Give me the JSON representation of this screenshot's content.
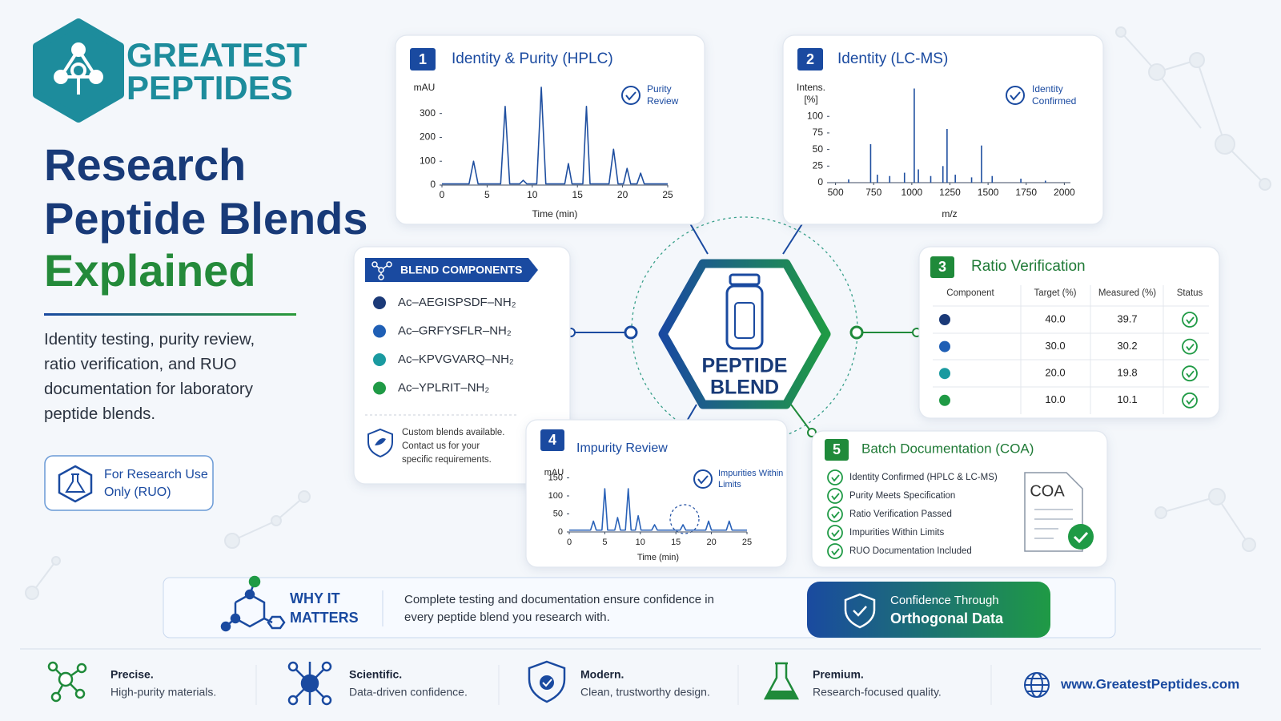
{
  "brand": {
    "lines": [
      "GREATEST",
      "PEPTIDES"
    ]
  },
  "headline": {
    "lines": [
      "Research",
      "Peptide Blends",
      "Explained"
    ]
  },
  "description": "Identity testing, purity review, ratio verification, and RUO documentation for laboratory peptide blends.",
  "ruo_badge": "For Research Use Only (RUO)",
  "components": {
    "title": "BLEND COMPONENTS",
    "items": [
      {
        "name": "Ac–AEGISPSDF–NH₂",
        "color": "#1b3a78"
      },
      {
        "name": "Ac–GRFYSFLR–NH₂",
        "color": "#1f5fb5"
      },
      {
        "name": "Ac–KPVGVARQ–NH₂",
        "color": "#1a9aa0"
      },
      {
        "name": "Ac–YPLRIT–NH₂",
        "color": "#1f9a45"
      }
    ],
    "note": "Custom blends available. Contact us for your specific requirements."
  },
  "center": {
    "lines": [
      "PEPTIDE",
      "BLEND"
    ]
  },
  "hplc": {
    "number": "1",
    "title": "Identity & Purity (HPLC)",
    "badge": "Purity Review",
    "chart": {
      "type": "line",
      "y_label": "mAU",
      "x_label": "Time (min)",
      "color": "#1f4fa0",
      "xlim": [
        0,
        25
      ],
      "ylim": [
        0,
        440
      ],
      "xticks": [
        0,
        5,
        10,
        15,
        20,
        25
      ],
      "yticks": [
        0,
        100,
        200,
        300
      ],
      "x": [
        0,
        3,
        3.5,
        4,
        6.5,
        7,
        7.5,
        8.6,
        9,
        9.4,
        10.5,
        11,
        11.5,
        13.6,
        14,
        14.4,
        15.6,
        16,
        16.4,
        18.5,
        19,
        19.5,
        20.1,
        20.5,
        20.9,
        21.6,
        22,
        22.4,
        25
      ],
      "y": [
        5,
        5,
        100,
        5,
        5,
        330,
        5,
        5,
        20,
        5,
        5,
        410,
        5,
        5,
        90,
        5,
        5,
        330,
        5,
        5,
        150,
        5,
        5,
        70,
        5,
        5,
        50,
        5,
        5
      ]
    }
  },
  "lcms": {
    "number": "2",
    "title": "Identity (LC-MS)",
    "badge": "Identity Confirmed",
    "chart": {
      "type": "stem",
      "y_label": "Intens. [%]",
      "x_label": "m/z",
      "color": "#1f4fa0",
      "xlim": [
        460,
        2040
      ],
      "ylim": [
        0,
        145
      ],
      "xticks": [
        500,
        750,
        1000,
        1250,
        1500,
        1750,
        2000
      ],
      "yticks": [
        0,
        25,
        50,
        75,
        100
      ],
      "x": [
        586,
        730,
        774,
        855,
        952,
        1016,
        1043,
        1124,
        1204,
        1231,
        1285,
        1392,
        1457,
        1527,
        1715,
        1876
      ],
      "values": [
        5,
        58,
        12,
        10,
        15,
        142,
        20,
        10,
        25,
        81,
        12,
        8,
        56,
        10,
        6,
        3
      ]
    }
  },
  "ratio": {
    "number": "3",
    "title": "Ratio Verification",
    "columns": [
      "Component",
      "Target (%)",
      "Measured (%)",
      "Status"
    ],
    "rows": [
      {
        "target": "40.0",
        "measured": "39.7"
      },
      {
        "target": "30.0",
        "measured": "30.2"
      },
      {
        "target": "20.0",
        "measured": "19.8"
      },
      {
        "target": "10.0",
        "measured": "10.1"
      }
    ]
  },
  "impurity": {
    "number": "4",
    "title": "Impurity Review",
    "badge": "Impurities Within Limits",
    "chart": {
      "type": "line",
      "y_label": "mAU",
      "x_label": "Time (min)",
      "color": "#2a62b8",
      "xlim": [
        0,
        25
      ],
      "ylim": [
        0,
        180
      ],
      "xticks": [
        0,
        5,
        10,
        15,
        20,
        25
      ],
      "yticks": [
        0,
        50,
        100,
        150
      ],
      "x": [
        0,
        3,
        3.4,
        3.8,
        4.6,
        5,
        5.4,
        6.4,
        6.8,
        7.2,
        7.9,
        8.3,
        8.7,
        9.3,
        9.7,
        10.1,
        11.6,
        12,
        12.4,
        15.6,
        16,
        16.4,
        19.2,
        19.6,
        20,
        22.1,
        22.5,
        22.9,
        25
      ],
      "y": [
        5,
        5,
        30,
        5,
        5,
        120,
        5,
        5,
        40,
        5,
        5,
        120,
        5,
        5,
        45,
        5,
        5,
        20,
        5,
        5,
        20,
        5,
        5,
        30,
        5,
        5,
        30,
        5,
        5
      ]
    }
  },
  "coa": {
    "number": "5",
    "title": "Batch Documentation (COA)",
    "items": [
      "Identity Confirmed (HPLC & LC-MS)",
      "Purity Meets Specification",
      "Ratio Verification Passed",
      "Impurities Within Limits",
      "RUO Documentation Included"
    ],
    "doc_label": "COA"
  },
  "why": {
    "heading": "WHY IT MATTERS",
    "text": "Complete testing and documentation ensure confidence in every peptide blend you research with.",
    "cta": [
      "Confidence Through",
      "Orthogonal Data"
    ]
  },
  "features": [
    {
      "title": "Precise.",
      "text": "High-purity materials."
    },
    {
      "title": "Scientific.",
      "text": "Data-driven confidence."
    },
    {
      "title": "Modern.",
      "text": "Clean, trustworthy design."
    },
    {
      "title": "Premium.",
      "text": "Research-focused quality."
    }
  ],
  "website": "www.GreatestPeptides.com"
}
